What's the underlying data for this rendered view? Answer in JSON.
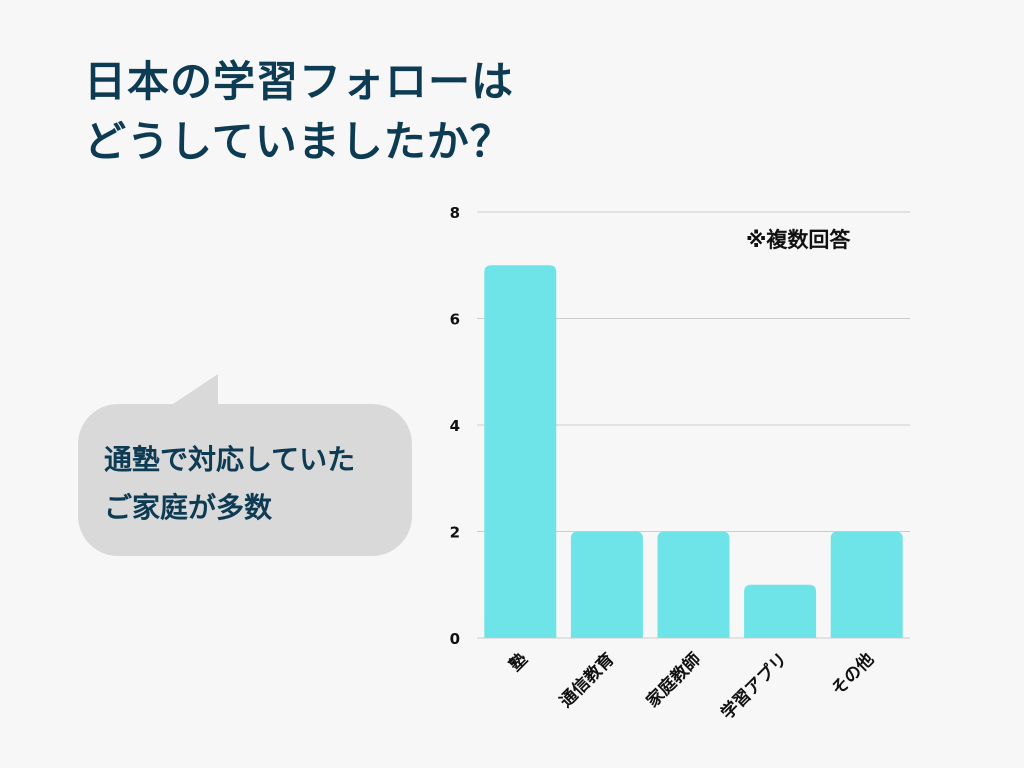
{
  "title": {
    "line1": "日本の学習フォローは",
    "line2": "どうしていましたか？"
  },
  "callout": {
    "line1": "通塾で対応していた",
    "line2": "ご家庭が多数"
  },
  "note": "※複数回答",
  "colors": {
    "bar": "#6ee4e8",
    "title": "#0d3b53",
    "grid": "#cccccc",
    "bubble": "#d9d9d9"
  },
  "chart_data": {
    "type": "bar",
    "categories": [
      "塾",
      "通信教育",
      "家庭教師",
      "学習アプリ",
      "その他"
    ],
    "values": [
      7,
      2,
      2,
      1,
      2
    ],
    "ylim": [
      0,
      8
    ],
    "yticks": [
      0,
      2,
      4,
      6,
      8
    ],
    "grid": true,
    "title": "",
    "xlabel": "",
    "ylabel": ""
  }
}
